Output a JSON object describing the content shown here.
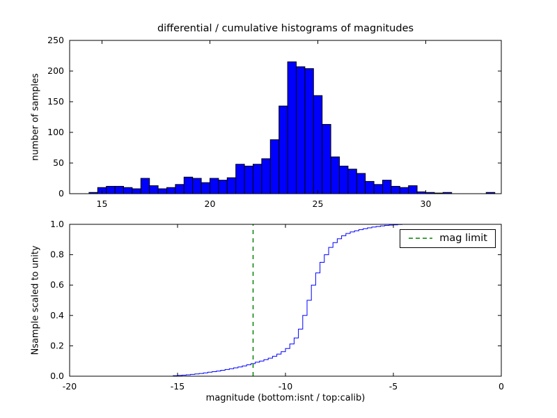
{
  "figure": {
    "title": "differential / cumulative histograms of magnitudes",
    "background": "#ffffff"
  },
  "chart_data": [
    {
      "type": "bar",
      "id": "differential-histogram-calib",
      "ylabel": "number of samples",
      "xlim": [
        13.5,
        33.5
      ],
      "ylim": [
        0,
        250
      ],
      "xticks": [
        15,
        20,
        25,
        30
      ],
      "xticklabels": [
        "15",
        "20",
        "25",
        "30"
      ],
      "yticks": [
        0,
        50,
        100,
        150,
        200,
        250
      ],
      "yticklabels": [
        "0",
        "50",
        "100",
        "150",
        "200",
        "250"
      ],
      "bar_color": "#0000ff",
      "bar_edge_color": "#000000",
      "bin_start": 14.0,
      "bin_width": 0.4,
      "values": [
        0,
        2,
        10,
        12,
        12,
        10,
        8,
        25,
        13,
        8,
        10,
        15,
        27,
        25,
        18,
        25,
        22,
        26,
        48,
        45,
        48,
        57,
        88,
        143,
        215,
        207,
        204,
        160,
        113,
        60,
        45,
        40,
        33,
        20,
        15,
        22,
        12,
        10,
        13,
        3,
        2,
        1,
        2,
        0,
        0,
        0,
        0,
        2
      ]
    },
    {
      "type": "line",
      "id": "cumulative-histogram-isnt",
      "xlabel": "magnitude (bottom:isnt / top:calib)",
      "ylabel": "Nsample scaled to unity",
      "xlim": [
        -20,
        0
      ],
      "ylim": [
        0,
        1
      ],
      "xticks": [
        -20,
        -15,
        -10,
        -5,
        0
      ],
      "xticklabels": [
        "-20",
        "-15",
        "-10",
        "-5",
        "0"
      ],
      "yticks": [
        0,
        0.2,
        0.4,
        0.6,
        0.8,
        1.0
      ],
      "yticklabels": [
        "0.0",
        "0.2",
        "0.4",
        "0.6",
        "0.8",
        "1.0"
      ],
      "line_color": "#0000ff",
      "step": true,
      "x": [
        -20.0,
        -15.4,
        -15.2,
        -15.0,
        -14.8,
        -14.6,
        -14.4,
        -14.2,
        -14.0,
        -13.8,
        -13.6,
        -13.4,
        -13.2,
        -13.0,
        -12.8,
        -12.6,
        -12.4,
        -12.2,
        -12.0,
        -11.8,
        -11.6,
        -11.4,
        -11.2,
        -11.0,
        -10.8,
        -10.6,
        -10.4,
        -10.2,
        -10.0,
        -9.8,
        -9.6,
        -9.4,
        -9.2,
        -9.0,
        -8.8,
        -8.6,
        -8.4,
        -8.2,
        -8.0,
        -7.8,
        -7.6,
        -7.4,
        -7.2,
        -7.0,
        -6.8,
        -6.6,
        -6.4,
        -6.2,
        -6.0,
        -5.8,
        -5.6,
        -5.4,
        -5.2,
        -5.0,
        -4.8,
        -4.6,
        0.0
      ],
      "y": [
        0,
        0,
        0.003,
        0.005,
        0.007,
        0.009,
        0.012,
        0.015,
        0.018,
        0.022,
        0.026,
        0.03,
        0.034,
        0.039,
        0.044,
        0.049,
        0.055,
        0.061,
        0.068,
        0.075,
        0.083,
        0.092,
        0.1,
        0.109,
        0.119,
        0.131,
        0.146,
        0.162,
        0.182,
        0.212,
        0.252,
        0.31,
        0.4,
        0.5,
        0.6,
        0.68,
        0.75,
        0.8,
        0.848,
        0.88,
        0.905,
        0.925,
        0.94,
        0.95,
        0.958,
        0.965,
        0.971,
        0.977,
        0.982,
        0.986,
        0.99,
        0.993,
        0.995,
        0.997,
        0.999,
        1.0,
        1.0
      ],
      "vline": {
        "x": -11.5,
        "color": "#008000",
        "style": "dashed",
        "label": "mag limit"
      },
      "legend": {
        "location": "upper right",
        "entries": [
          {
            "label": "mag limit",
            "color": "#008000",
            "style": "dashed"
          }
        ]
      }
    }
  ]
}
